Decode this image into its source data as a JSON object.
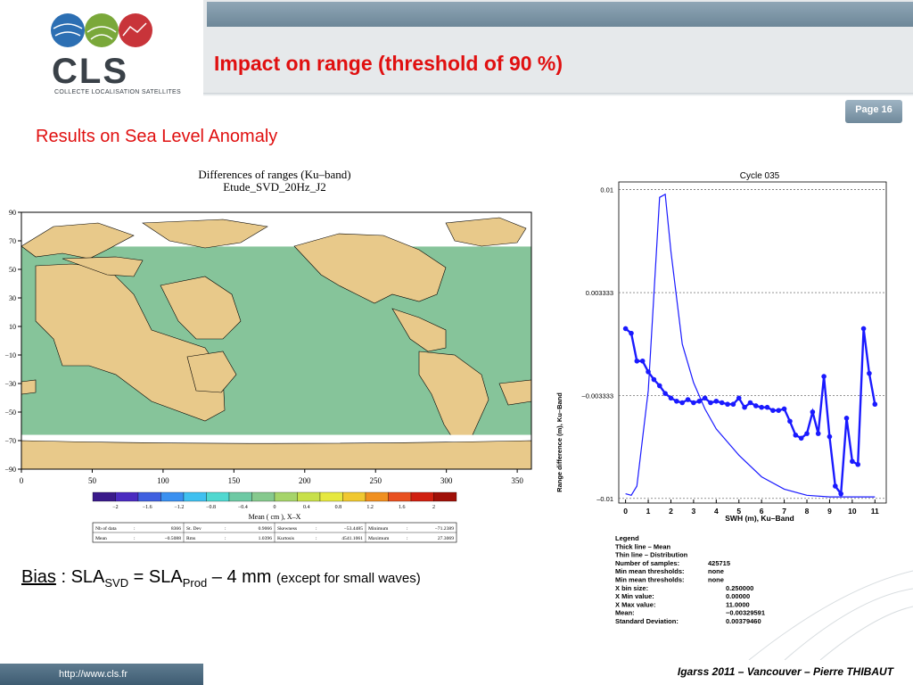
{
  "header": {
    "title": "Impact on range (threshold of 90 %)",
    "page": "Page 16"
  },
  "logo": {
    "name": "CLS",
    "subtitle": "COLLECTE LOCALISATION SATELLITES"
  },
  "subtitle": "Results on Sea Level Anomaly",
  "bias": {
    "label": "Bias",
    "sep": " : SLA",
    "sub1": "SVD",
    "eq": " = SLA",
    "sub2": "Prod",
    "rest": " – 4 mm ",
    "note": "(except for small waves)"
  },
  "footer": {
    "url": "http://www.cls.fr",
    "credit": "Igarss 2011 – Vancouver – Pierre THIBAUT"
  },
  "colors": {
    "accent_red": "#e01010",
    "header_blue": "#7f98a9",
    "plot_blue": "#1a1aff"
  },
  "chart_data": [
    {
      "type": "heatmap",
      "title": "Differences of ranges (Ku–band)",
      "subtitle": "Etude_SVD_20Hz_J2",
      "xlim": [
        0,
        360
      ],
      "ylim": [
        -90,
        90
      ],
      "x_ticks": [
        "0",
        "50",
        "100",
        "150",
        "200",
        "250",
        "300",
        "350"
      ],
      "y_ticks": [
        "90",
        "70",
        "50",
        "30",
        "10",
        "−10",
        "−30",
        "−50",
        "−70",
        "−90"
      ],
      "colorbar": {
        "label": "Mean ( cm ), X–X",
        "ticks": [
          "−2",
          "−1.6",
          "−1.2",
          "−0.8",
          "−0.4",
          "0",
          "0.4",
          "0.8",
          "1.2",
          "1.6",
          "2"
        ],
        "colors": [
          "#3a1a8a",
          "#4b2bc0",
          "#4060e0",
          "#3a90f0",
          "#40c0f0",
          "#50d8d0",
          "#6ec9a4",
          "#86c98e",
          "#a6d46a",
          "#c8e04a",
          "#e6e840",
          "#f0c830",
          "#f09020",
          "#e85020",
          "#d02010",
          "#a01008"
        ]
      },
      "stats": [
        [
          "Nb of data",
          ":",
          "8366",
          "St. Dev",
          ":",
          "0.9066",
          "Skewness",
          ":",
          "−53.4485",
          "Minimum",
          ":",
          "−71.2389"
        ],
        [
          "Mean",
          ":",
          "−0.5088",
          "Rms",
          ":",
          "1.0396",
          "Kurtosis",
          ":",
          "4541.1061",
          "Maximum",
          ":",
          "27.3069"
        ]
      ]
    },
    {
      "type": "line",
      "title": "Cycle 035",
      "xlabel": "SWH (m), Ku–Band",
      "ylabel": "Range difference (m), Ku–Band",
      "xlim": [
        -0.3,
        11.5
      ],
      "ylim": [
        -0.0103,
        0.0105
      ],
      "x_ticks": [
        0,
        1,
        2,
        3,
        4,
        5,
        6,
        7,
        8,
        9,
        10,
        11
      ],
      "y_ticks": [
        {
          "value": 0.01,
          "label": "0.01"
        },
        {
          "value": 0.003333,
          "label": "0.003333"
        },
        {
          "value": -0.003333,
          "label": "–0.003333"
        },
        {
          "value": -0.01,
          "label": "–0.01"
        }
      ],
      "series": [
        {
          "style": "thick-with-markers",
          "x": [
            0.0,
            0.25,
            0.5,
            0.75,
            1.0,
            1.25,
            1.5,
            1.75,
            2.0,
            2.25,
            2.5,
            2.75,
            3.0,
            3.25,
            3.5,
            3.75,
            4.0,
            4.25,
            4.5,
            4.75,
            5.0,
            5.25,
            5.5,
            5.75,
            6.0,
            6.25,
            6.5,
            6.75,
            7.0,
            7.25,
            7.5,
            7.75,
            8.0,
            8.25,
            8.5,
            8.75,
            9.0,
            9.25,
            9.5,
            9.75,
            10.0,
            10.25,
            10.5,
            10.75,
            11.0
          ],
          "y": [
            0.001,
            0.0007,
            -0.0011,
            -0.0011,
            -0.0018,
            -0.0023,
            -0.0027,
            -0.0032,
            -0.0035,
            -0.0037,
            -0.0038,
            -0.0036,
            -0.0038,
            -0.0037,
            -0.0035,
            -0.0038,
            -0.0037,
            -0.0038,
            -0.0039,
            -0.0039,
            -0.0035,
            -0.0041,
            -0.0038,
            -0.004,
            -0.0041,
            -0.0041,
            -0.0043,
            -0.0043,
            -0.0042,
            -0.005,
            -0.0059,
            -0.0061,
            -0.0058,
            -0.0044,
            -0.0058,
            -0.0021,
            -0.006,
            -0.0092,
            -0.0097,
            -0.0048,
            -0.0076,
            -0.0078,
            0.001,
            -0.0019,
            -0.0039
          ]
        },
        {
          "style": "thin",
          "x": [
            0.0,
            0.25,
            0.5,
            1.0,
            1.5,
            1.75,
            2.0,
            2.5,
            3.0,
            3.5,
            4.0,
            5.0,
            6.0,
            7.0,
            8.0,
            9.0,
            10.0,
            11.0
          ],
          "y": [
            -0.0097,
            -0.0098,
            -0.0092,
            -0.003,
            0.0095,
            0.0097,
            0.006,
            0.0,
            -0.0025,
            -0.0042,
            -0.0055,
            -0.0072,
            -0.0086,
            -0.0094,
            -0.0098,
            -0.0099,
            -0.0099,
            -0.0099
          ]
        }
      ],
      "legend": [
        "Legend",
        "Thick line – Mean",
        "Thin  line – Distribution",
        "Number of samples:",
        "Min mean thresholds:",
        "Min mean thresholds:",
        "X bin size:",
        "X Min value:",
        "X Max value:",
        "Mean:",
        "Standard Deviation:"
      ],
      "legend_values": [
        "",
        "",
        "",
        "425715",
        "none",
        "none",
        "0.250000",
        "0.00000",
        "11.0000",
        "−0.00329591",
        "0.00379460"
      ]
    }
  ]
}
